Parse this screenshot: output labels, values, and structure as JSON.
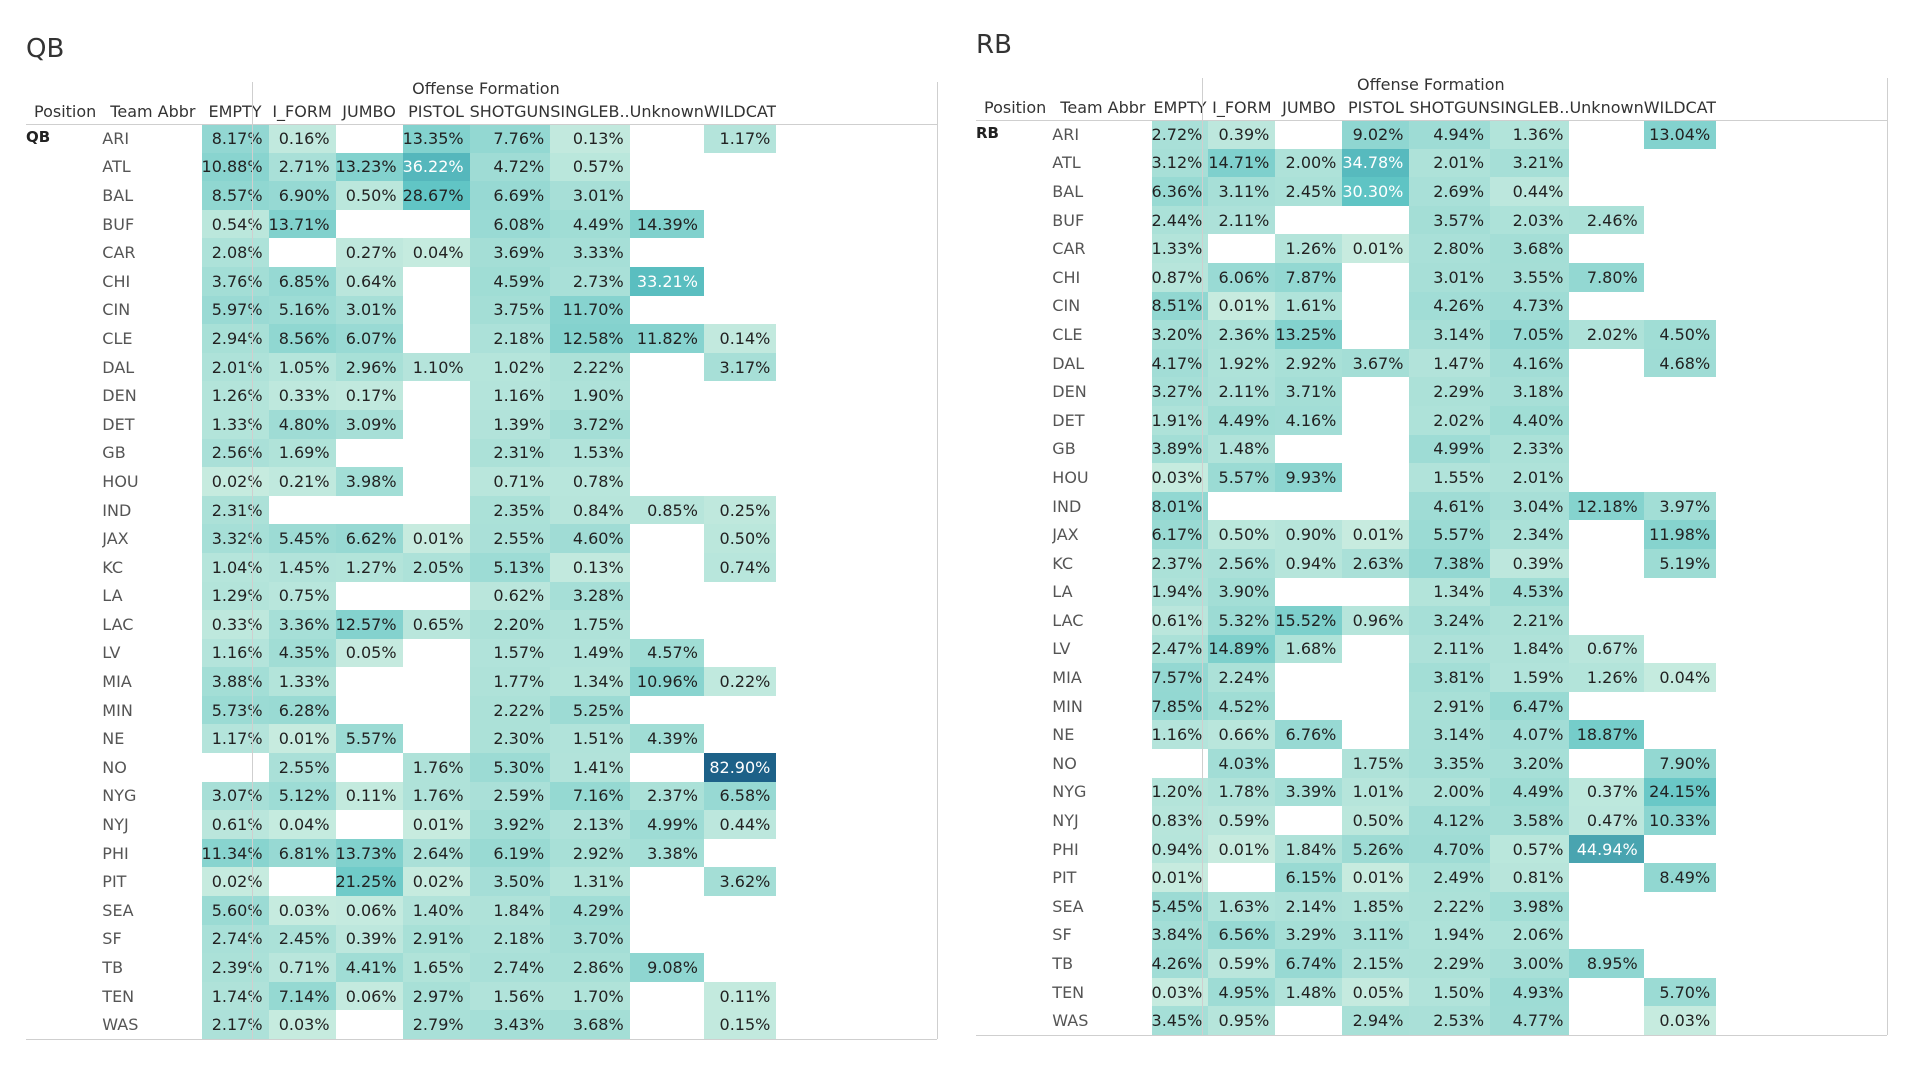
{
  "chart_data": [
    {
      "type": "heatmap",
      "title": "QB",
      "group_header": "Offense Formation",
      "row_headers": [
        "Position",
        "Team Abbr"
      ],
      "position": "QB",
      "columns": [
        "EMPTY",
        "I_FORM",
        "JUMBO",
        "PISTOL",
        "SHOTGUN",
        "SINGLEB..",
        "Unknown",
        "WILDCAT"
      ],
      "rows": [
        {
          "team": "ARI",
          "values": [
            8.17,
            0.16,
            null,
            13.35,
            7.76,
            0.13,
            null,
            1.17
          ]
        },
        {
          "team": "ATL",
          "values": [
            10.88,
            2.71,
            13.23,
            36.22,
            4.72,
            0.57,
            null,
            null
          ]
        },
        {
          "team": "BAL",
          "values": [
            8.57,
            6.9,
            0.5,
            28.67,
            6.69,
            3.01,
            null,
            null
          ]
        },
        {
          "team": "BUF",
          "values": [
            0.54,
            13.71,
            null,
            null,
            6.08,
            4.49,
            14.39,
            null
          ]
        },
        {
          "team": "CAR",
          "values": [
            2.08,
            null,
            0.27,
            0.04,
            3.69,
            3.33,
            null,
            null
          ]
        },
        {
          "team": "CHI",
          "values": [
            3.76,
            6.85,
            0.64,
            null,
            4.59,
            2.73,
            33.21,
            null
          ]
        },
        {
          "team": "CIN",
          "values": [
            5.97,
            5.16,
            3.01,
            null,
            3.75,
            11.7,
            null,
            null
          ]
        },
        {
          "team": "CLE",
          "values": [
            2.94,
            8.56,
            6.07,
            null,
            2.18,
            12.58,
            11.82,
            0.14
          ]
        },
        {
          "team": "DAL",
          "values": [
            2.01,
            1.05,
            2.96,
            1.1,
            1.02,
            2.22,
            null,
            3.17
          ]
        },
        {
          "team": "DEN",
          "values": [
            1.26,
            0.33,
            0.17,
            null,
            1.16,
            1.9,
            null,
            null
          ]
        },
        {
          "team": "DET",
          "values": [
            1.33,
            4.8,
            3.09,
            null,
            1.39,
            3.72,
            null,
            null
          ]
        },
        {
          "team": "GB",
          "values": [
            2.56,
            1.69,
            null,
            null,
            2.31,
            1.53,
            null,
            null
          ]
        },
        {
          "team": "HOU",
          "values": [
            0.02,
            0.21,
            3.98,
            null,
            0.71,
            0.78,
            null,
            null
          ]
        },
        {
          "team": "IND",
          "values": [
            2.31,
            null,
            null,
            null,
            2.35,
            0.84,
            0.85,
            0.25
          ]
        },
        {
          "team": "JAX",
          "values": [
            3.32,
            5.45,
            6.62,
            0.01,
            2.55,
            4.6,
            null,
            0.5
          ]
        },
        {
          "team": "KC",
          "values": [
            1.04,
            1.45,
            1.27,
            2.05,
            5.13,
            0.13,
            null,
            0.74
          ]
        },
        {
          "team": "LA",
          "values": [
            1.29,
            0.75,
            null,
            null,
            0.62,
            3.28,
            null,
            null
          ]
        },
        {
          "team": "LAC",
          "values": [
            0.33,
            3.36,
            12.57,
            0.65,
            2.2,
            1.75,
            null,
            null
          ]
        },
        {
          "team": "LV",
          "values": [
            1.16,
            4.35,
            0.05,
            null,
            1.57,
            1.49,
            4.57,
            null
          ]
        },
        {
          "team": "MIA",
          "values": [
            3.88,
            1.33,
            null,
            null,
            1.77,
            1.34,
            10.96,
            0.22
          ]
        },
        {
          "team": "MIN",
          "values": [
            5.73,
            6.28,
            null,
            null,
            2.22,
            5.25,
            null,
            null
          ]
        },
        {
          "team": "NE",
          "values": [
            1.17,
            0.01,
            5.57,
            null,
            2.3,
            1.51,
            4.39,
            null
          ]
        },
        {
          "team": "NO",
          "values": [
            null,
            2.55,
            null,
            1.76,
            5.3,
            1.41,
            null,
            82.9
          ]
        },
        {
          "team": "NYG",
          "values": [
            3.07,
            5.12,
            0.11,
            1.76,
            2.59,
            7.16,
            2.37,
            6.58
          ]
        },
        {
          "team": "NYJ",
          "values": [
            0.61,
            0.04,
            null,
            0.01,
            3.92,
            2.13,
            4.99,
            0.44
          ]
        },
        {
          "team": "PHI",
          "values": [
            11.34,
            6.81,
            13.73,
            2.64,
            6.19,
            2.92,
            3.38,
            null
          ]
        },
        {
          "team": "PIT",
          "values": [
            0.02,
            null,
            21.25,
            0.02,
            3.5,
            1.31,
            null,
            3.62
          ]
        },
        {
          "team": "SEA",
          "values": [
            5.6,
            0.03,
            0.06,
            1.4,
            1.84,
            4.29,
            null,
            null
          ]
        },
        {
          "team": "SF",
          "values": [
            2.74,
            2.45,
            0.39,
            2.91,
            2.18,
            3.7,
            null,
            null
          ]
        },
        {
          "team": "TB",
          "values": [
            2.39,
            0.71,
            4.41,
            1.65,
            2.74,
            2.86,
            9.08,
            null
          ]
        },
        {
          "team": "TEN",
          "values": [
            1.74,
            7.14,
            0.06,
            2.97,
            1.56,
            1.7,
            null,
            0.11
          ]
        },
        {
          "team": "WAS",
          "values": [
            2.17,
            0.03,
            null,
            2.79,
            3.43,
            3.68,
            null,
            0.15
          ]
        }
      ],
      "value_format": "percent_2dp"
    },
    {
      "type": "heatmap",
      "title": "RB",
      "group_header": "Offense Formation",
      "row_headers": [
        "Position",
        "Team Abbr"
      ],
      "position": "RB",
      "columns": [
        "EMPTY",
        "I_FORM",
        "JUMBO",
        "PISTOL",
        "SHOTGUN",
        "SINGLEB..",
        "Unknown",
        "WILDCAT"
      ],
      "rows": [
        {
          "team": "ARI",
          "values": [
            2.72,
            0.39,
            null,
            9.02,
            4.94,
            1.36,
            null,
            13.04
          ]
        },
        {
          "team": "ATL",
          "values": [
            3.12,
            14.71,
            2.0,
            34.78,
            2.01,
            3.21,
            null,
            null
          ]
        },
        {
          "team": "BAL",
          "values": [
            6.36,
            3.11,
            2.45,
            30.3,
            2.69,
            0.44,
            null,
            null
          ]
        },
        {
          "team": "BUF",
          "values": [
            2.44,
            2.11,
            null,
            null,
            3.57,
            2.03,
            2.46,
            null
          ]
        },
        {
          "team": "CAR",
          "values": [
            1.33,
            null,
            1.26,
            0.01,
            2.8,
            3.68,
            null,
            null
          ]
        },
        {
          "team": "CHI",
          "values": [
            0.87,
            6.06,
            7.87,
            null,
            3.01,
            3.55,
            7.8,
            null
          ]
        },
        {
          "team": "CIN",
          "values": [
            8.51,
            0.01,
            1.61,
            null,
            4.26,
            4.73,
            null,
            null
          ]
        },
        {
          "team": "CLE",
          "values": [
            3.2,
            2.36,
            13.25,
            null,
            3.14,
            7.05,
            2.02,
            4.5
          ]
        },
        {
          "team": "DAL",
          "values": [
            4.17,
            1.92,
            2.92,
            3.67,
            1.47,
            4.16,
            null,
            4.68
          ]
        },
        {
          "team": "DEN",
          "values": [
            3.27,
            2.11,
            3.71,
            null,
            2.29,
            3.18,
            null,
            null
          ]
        },
        {
          "team": "DET",
          "values": [
            1.91,
            4.49,
            4.16,
            null,
            2.02,
            4.4,
            null,
            null
          ]
        },
        {
          "team": "GB",
          "values": [
            3.89,
            1.48,
            null,
            null,
            4.99,
            2.33,
            null,
            null
          ]
        },
        {
          "team": "HOU",
          "values": [
            0.03,
            5.57,
            9.93,
            null,
            1.55,
            2.01,
            null,
            null
          ]
        },
        {
          "team": "IND",
          "values": [
            8.01,
            null,
            null,
            null,
            4.61,
            3.04,
            12.18,
            3.97
          ]
        },
        {
          "team": "JAX",
          "values": [
            6.17,
            0.5,
            0.9,
            0.01,
            5.57,
            2.34,
            null,
            11.98
          ]
        },
        {
          "team": "KC",
          "values": [
            2.37,
            2.56,
            0.94,
            2.63,
            7.38,
            0.39,
            null,
            5.19
          ]
        },
        {
          "team": "LA",
          "values": [
            1.94,
            3.9,
            null,
            null,
            1.34,
            4.53,
            null,
            null
          ]
        },
        {
          "team": "LAC",
          "values": [
            0.61,
            5.32,
            15.52,
            0.96,
            3.24,
            2.21,
            null,
            null
          ]
        },
        {
          "team": "LV",
          "values": [
            2.47,
            14.89,
            1.68,
            null,
            2.11,
            1.84,
            0.67,
            null
          ]
        },
        {
          "team": "MIA",
          "values": [
            7.57,
            2.24,
            null,
            null,
            3.81,
            1.59,
            1.26,
            0.04
          ]
        },
        {
          "team": "MIN",
          "values": [
            7.85,
            4.52,
            null,
            null,
            2.91,
            6.47,
            null,
            null
          ]
        },
        {
          "team": "NE",
          "values": [
            1.16,
            0.66,
            6.76,
            null,
            3.14,
            4.07,
            18.87,
            null
          ]
        },
        {
          "team": "NO",
          "values": [
            null,
            4.03,
            null,
            1.75,
            3.35,
            3.2,
            null,
            7.9
          ]
        },
        {
          "team": "NYG",
          "values": [
            1.2,
            1.78,
            3.39,
            1.01,
            2.0,
            4.49,
            0.37,
            24.15
          ]
        },
        {
          "team": "NYJ",
          "values": [
            0.83,
            0.59,
            null,
            0.5,
            4.12,
            3.58,
            0.47,
            10.33
          ]
        },
        {
          "team": "PHI",
          "values": [
            0.94,
            0.01,
            1.84,
            5.26,
            4.7,
            0.57,
            44.94,
            null
          ]
        },
        {
          "team": "PIT",
          "values": [
            0.01,
            null,
            6.15,
            0.01,
            2.49,
            0.81,
            null,
            8.49
          ]
        },
        {
          "team": "SEA",
          "values": [
            5.45,
            1.63,
            2.14,
            1.85,
            2.22,
            3.98,
            null,
            null
          ]
        },
        {
          "team": "SF",
          "values": [
            3.84,
            6.56,
            3.29,
            3.11,
            1.94,
            2.06,
            null,
            null
          ]
        },
        {
          "team": "TB",
          "values": [
            4.26,
            0.59,
            6.74,
            2.15,
            2.29,
            3.0,
            8.95,
            null
          ]
        },
        {
          "team": "TEN",
          "values": [
            0.03,
            4.95,
            1.48,
            0.05,
            1.5,
            4.93,
            null,
            5.7
          ]
        },
        {
          "team": "WAS",
          "values": [
            3.45,
            0.95,
            null,
            2.94,
            2.53,
            4.77,
            null,
            0.03
          ]
        }
      ],
      "value_format": "percent_2dp"
    }
  ],
  "colors": {
    "low": "#c9ece0",
    "mid": "#5ec4c4",
    "high": "#1b5e86",
    "frame": "#cfcfcf",
    "text_dark": "#222222",
    "text_light": "#ffffff"
  }
}
